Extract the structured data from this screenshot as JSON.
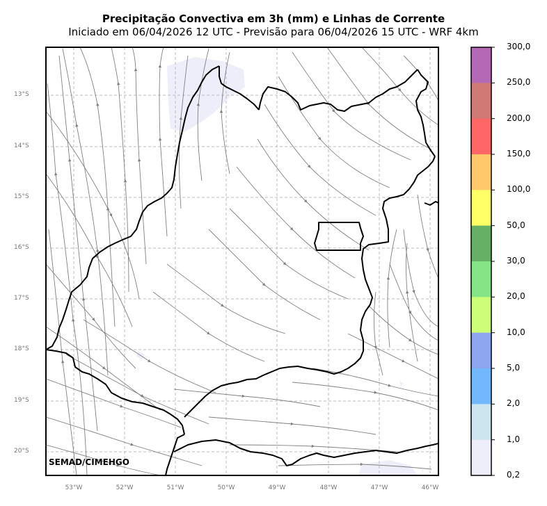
{
  "title": "Precipitação Convectiva em 3h (mm) e Linhas de Corrente",
  "subtitle": "Iniciado em 06/04/2026 12 UTC - Previsão para 06/04/2026 15 UTC - WRF 4km",
  "credit": "SEMAD/CIMEHGO",
  "lat_labels": [
    "13°S",
    "14°S",
    "15°S",
    "16°S",
    "17°S",
    "18°S",
    "19°S",
    "20°S"
  ],
  "lon_labels": [
    "53°W",
    "52°W",
    "51°W",
    "50°W",
    "49°W",
    "48°W",
    "47°W",
    "46°W"
  ],
  "colorbar": {
    "labels": [
      "300,0",
      "250,0",
      "200,0",
      "150,0",
      "100,0",
      "50,0",
      "30,0",
      "20,0",
      "10,0",
      "5,0",
      "2,0",
      "1,0",
      "0,2"
    ],
    "colors": [
      "#b469b7",
      "#cf7a74",
      "#ff6666",
      "#ffc96b",
      "#ffff66",
      "#66b066",
      "#86e386",
      "#ccff77",
      "#8ea6ef",
      "#72b8ff",
      "#cce5ee",
      "#eeeefa"
    ]
  },
  "colors": {
    "border": "#000000",
    "streamline": "#808080",
    "grid": "#bbbbbb",
    "light_precip": "#eeeefa"
  }
}
